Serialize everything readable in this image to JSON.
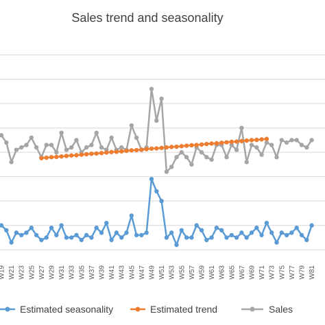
{
  "chart_data": {
    "type": "line",
    "title": "Sales trend and seasonality",
    "xlabel": "",
    "ylabel": "",
    "grid": true,
    "legend_position": "bottom",
    "x_first_week": 19,
    "x_tick_step": 2,
    "x_tick_prefix": "W",
    "ylim": [
      -0.5,
      8
    ],
    "series": [
      {
        "name": "Estimated seasonality",
        "color": "#5B9BD5",
        "x_start": 19,
        "values": [
          1.0,
          0.8,
          0.3,
          0.7,
          0.6,
          0.7,
          0.9,
          0.6,
          0.4,
          0.5,
          0.9,
          0.6,
          1.0,
          0.5,
          0.5,
          0.6,
          0.4,
          0.6,
          0.5,
          0.9,
          0.7,
          1.1,
          0.4,
          0.7,
          0.5,
          0.7,
          1.4,
          0.6,
          0.6,
          0.7,
          2.9,
          2.4,
          2.0,
          0.5,
          0.7,
          0.2,
          0.8,
          0.5,
          0.5,
          1.0,
          0.8,
          0.4,
          0.5,
          0.9,
          0.8,
          0.5,
          0.6,
          0.5,
          0.7,
          0.5,
          0.7,
          0.9,
          0.6,
          1.1,
          0.7,
          0.3,
          0.7,
          0.6,
          0.7,
          0.9,
          0.6,
          0.4,
          1.0
        ]
      },
      {
        "name": "Estimated trend",
        "color": "#ED7D31",
        "x_start": 27,
        "values": [
          3.76,
          3.78,
          3.8,
          3.81,
          3.83,
          3.85,
          3.87,
          3.88,
          3.9,
          3.92,
          3.94,
          3.95,
          3.97,
          3.99,
          4.01,
          4.02,
          4.04,
          4.06,
          4.08,
          4.09,
          4.11,
          4.13,
          4.15,
          4.16,
          4.18,
          4.2,
          4.22,
          4.23,
          4.25,
          4.27,
          4.29,
          4.3,
          4.32,
          4.34,
          4.36,
          4.37,
          4.39,
          4.41,
          4.43,
          4.44,
          4.46,
          4.48,
          4.5,
          4.51,
          4.53,
          4.55
        ]
      },
      {
        "name": "Sales",
        "color": "#A5A5A5",
        "x_start": 19,
        "values": [
          4.7,
          4.4,
          3.6,
          4.1,
          4.2,
          4.3,
          4.6,
          4.2,
          3.8,
          4.3,
          4.3,
          4.0,
          4.8,
          4.1,
          4.2,
          4.5,
          4.0,
          4.2,
          4.3,
          4.8,
          4.2,
          4.1,
          4.6,
          4.1,
          4.2,
          4.1,
          5.1,
          4.6,
          4.1,
          4.2,
          6.6,
          5.3,
          6.2,
          3.2,
          3.4,
          3.8,
          4.0,
          3.8,
          3.5,
          4.2,
          4.0,
          3.8,
          3.7,
          4.3,
          4.3,
          3.8,
          4.3,
          4.1,
          5.0,
          3.6,
          4.3,
          4.2,
          3.9,
          4.4,
          4.3,
          3.8,
          4.5,
          4.4,
          4.5,
          4.5,
          4.3,
          4.2,
          4.5
        ]
      }
    ]
  }
}
